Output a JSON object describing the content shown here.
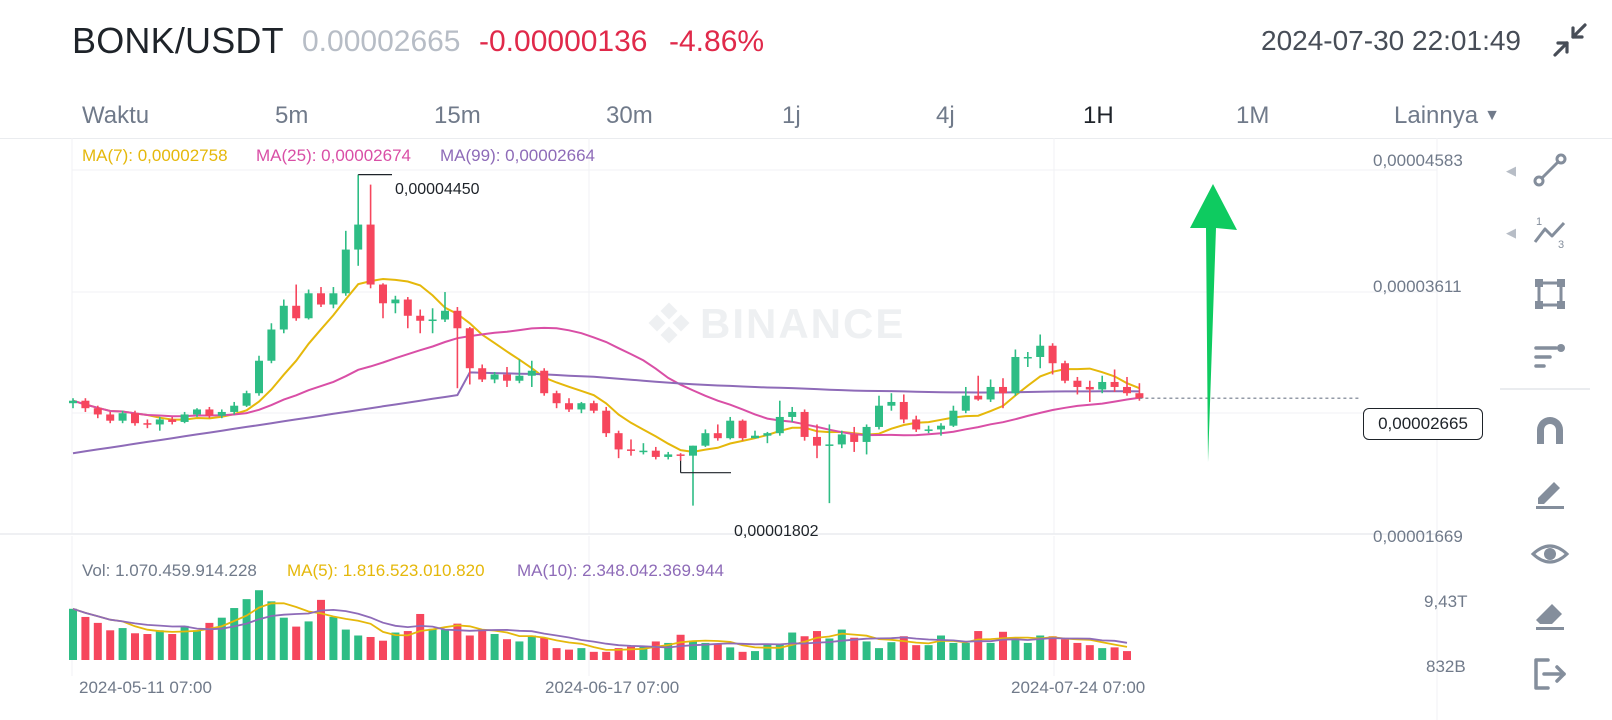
{
  "header": {
    "pair": "BONK/USDT",
    "last_price": "0.00002665",
    "change": "-0.00000136",
    "change_pct": "-4.86%",
    "datetime": "2024-07-30 22:01:49",
    "collapse_icon": "collapse-icon"
  },
  "tabs": {
    "label": "Waktu",
    "items": [
      "5m",
      "15m",
      "30m",
      "1j",
      "4j",
      "1H",
      "1M"
    ],
    "active": "1H",
    "more": "Lainnya"
  },
  "chart": {
    "ma_legend": {
      "ma7": "MA(7): 0,00002758",
      "ma25": "MA(25): 0,00002674",
      "ma99": "MA(99): 0,00002664"
    },
    "vol_legend": {
      "vol": "Vol: 1.070.459.914.228",
      "ma5": "MA(5): 1.816.523.010.820",
      "ma10": "MA(10): 2.348.042.369.944"
    },
    "price_axis": [
      "0,00004583",
      "0,00003611",
      "0,00001669"
    ],
    "current_price_tag": "0,00002665",
    "high_label": "0,00004450",
    "low_label": "0,00001802",
    "volume_axis": [
      "9,43T",
      "832B"
    ],
    "date_axis": [
      "2024-05-11 07:00",
      "2024-06-17 07:00",
      "2024-07-24 07:00"
    ],
    "watermark": "BINANCE",
    "colors": {
      "up": "#2ebd85",
      "down": "#f6465d",
      "ma7": "#e5b80b",
      "ma25": "#d94fa6",
      "ma99": "#8e6bb8",
      "arrow": "#0ecb60"
    }
  },
  "chart_data": {
    "type": "candlestick",
    "interval": "1D",
    "y_range": [
      1.669e-05,
      4.583e-05
    ],
    "candles": [
      [
        2.62e-05,
        2.64e-05,
        2.58e-05,
        2.66e-05
      ],
      [
        2.64e-05,
        2.58e-05,
        2.55e-05,
        2.66e-05
      ],
      [
        2.58e-05,
        2.53e-05,
        2.5e-05,
        2.6e-05
      ],
      [
        2.53e-05,
        2.48e-05,
        2.46e-05,
        2.55e-05
      ],
      [
        2.48e-05,
        2.54e-05,
        2.46e-05,
        2.56e-05
      ],
      [
        2.54e-05,
        2.46e-05,
        2.44e-05,
        2.56e-05
      ],
      [
        2.46e-05,
        2.45e-05,
        2.42e-05,
        2.49e-05
      ],
      [
        2.45e-05,
        2.49e-05,
        2.4e-05,
        2.51e-05
      ],
      [
        2.49e-05,
        2.47e-05,
        2.45e-05,
        2.51e-05
      ],
      [
        2.47e-05,
        2.53e-05,
        2.46e-05,
        2.55e-05
      ],
      [
        2.53e-05,
        2.57e-05,
        2.51e-05,
        2.58e-05
      ],
      [
        2.57e-05,
        2.52e-05,
        2.5e-05,
        2.59e-05
      ],
      [
        2.52e-05,
        2.55e-05,
        2.5e-05,
        2.57e-05
      ],
      [
        2.55e-05,
        2.6e-05,
        2.53e-05,
        2.63e-05
      ],
      [
        2.6e-05,
        2.7e-05,
        2.59e-05,
        2.72e-05
      ],
      [
        2.7e-05,
        2.96e-05,
        2.68e-05,
        3e-05
      ],
      [
        2.96e-05,
        3.21e-05,
        2.94e-05,
        3.26e-05
      ],
      [
        3.21e-05,
        3.4e-05,
        3.18e-05,
        3.45e-05
      ],
      [
        3.4e-05,
        3.3e-05,
        3.28e-05,
        3.57e-05
      ],
      [
        3.3e-05,
        3.5e-05,
        3.29e-05,
        3.53e-05
      ],
      [
        3.5e-05,
        3.41e-05,
        3.39e-05,
        3.55e-05
      ],
      [
        3.41e-05,
        3.5e-05,
        3.38e-05,
        3.55e-05
      ],
      [
        3.5e-05,
        3.85e-05,
        3.48e-05,
        4e-05
      ],
      [
        3.85e-05,
        4.05e-05,
        3.72e-05,
        4.45e-05
      ],
      [
        4.05e-05,
        3.57e-05,
        3.54e-05,
        4.37e-05
      ],
      [
        3.57e-05,
        3.42e-05,
        3.3e-05,
        3.58e-05
      ],
      [
        3.42e-05,
        3.45e-05,
        3.34e-05,
        3.48e-05
      ],
      [
        3.45e-05,
        3.32e-05,
        3.22e-05,
        3.47e-05
      ],
      [
        3.32e-05,
        3.28e-05,
        3.18e-05,
        3.37e-05
      ],
      [
        3.28e-05,
        3.29e-05,
        3.18e-05,
        3.38e-05
      ],
      [
        3.29e-05,
        3.36e-05,
        3.27e-05,
        3.51e-05
      ],
      [
        3.36e-05,
        3.22e-05,
        2.74e-05,
        3.39e-05
      ],
      [
        3.22e-05,
        2.9e-05,
        2.77e-05,
        3.23e-05
      ],
      [
        2.9e-05,
        2.81e-05,
        2.79e-05,
        2.93e-05
      ],
      [
        2.81e-05,
        2.85e-05,
        2.78e-05,
        2.87e-05
      ],
      [
        2.85e-05,
        2.8e-05,
        2.75e-05,
        2.91e-05
      ],
      [
        2.8e-05,
        2.84e-05,
        2.78e-05,
        2.97e-05
      ],
      [
        2.84e-05,
        2.88e-05,
        2.75e-05,
        2.96e-05
      ],
      [
        2.88e-05,
        2.7e-05,
        2.68e-05,
        2.9e-05
      ],
      [
        2.7e-05,
        2.62e-05,
        2.58e-05,
        2.72e-05
      ],
      [
        2.62e-05,
        2.57e-05,
        2.55e-05,
        2.66e-05
      ],
      [
        2.57e-05,
        2.62e-05,
        2.54e-05,
        2.63e-05
      ],
      [
        2.62e-05,
        2.56e-05,
        2.54e-05,
        2.64e-05
      ],
      [
        2.56e-05,
        2.38e-05,
        2.35e-05,
        2.59e-05
      ],
      [
        2.38e-05,
        2.25e-05,
        2.18e-05,
        2.4e-05
      ],
      [
        2.25e-05,
        2.24e-05,
        2.2e-05,
        2.33e-05
      ],
      [
        2.24e-05,
        2.24e-05,
        2.21e-05,
        2.3e-05
      ],
      [
        2.24e-05,
        2.19e-05,
        2.17e-05,
        2.27e-05
      ],
      [
        2.19e-05,
        2.21e-05,
        2.17e-05,
        2.23e-05
      ],
      [
        2.21e-05,
        2.2e-05,
        2.16e-05,
        2.22e-05
      ],
      [
        2.2e-05,
        2.28e-05,
        1.8e-05,
        2.28e-05
      ],
      [
        2.28e-05,
        2.38e-05,
        2.27e-05,
        2.41e-05
      ],
      [
        2.38e-05,
        2.34e-05,
        2.32e-05,
        2.45e-05
      ],
      [
        2.34e-05,
        2.48e-05,
        2.33e-05,
        2.51e-05
      ],
      [
        2.48e-05,
        2.34e-05,
        2.32e-05,
        2.49e-05
      ],
      [
        2.34e-05,
        2.36e-05,
        2.34e-05,
        2.4e-05
      ],
      [
        2.36e-05,
        2.38e-05,
        2.3e-05,
        2.39e-05
      ],
      [
        2.38e-05,
        2.51e-05,
        2.36e-05,
        2.64e-05
      ],
      [
        2.51e-05,
        2.55e-05,
        2.47e-05,
        2.59e-05
      ],
      [
        2.55e-05,
        2.35e-05,
        2.32e-05,
        2.57e-05
      ],
      [
        2.35e-05,
        2.28e-05,
        2.18e-05,
        2.45e-05
      ],
      [
        2.28e-05,
        2.29e-05,
        1.82e-05,
        2.45e-05
      ],
      [
        2.29e-05,
        2.37e-05,
        2.26e-05,
        2.4e-05
      ],
      [
        2.37e-05,
        2.31e-05,
        2.23e-05,
        2.43e-05
      ],
      [
        2.31e-05,
        2.43e-05,
        2.21e-05,
        2.45e-05
      ],
      [
        2.43e-05,
        2.6e-05,
        2.41e-05,
        2.68e-05
      ],
      [
        2.6e-05,
        2.63e-05,
        2.56e-05,
        2.7e-05
      ],
      [
        2.63e-05,
        2.49e-05,
        2.46e-05,
        2.69e-05
      ],
      [
        2.49e-05,
        2.41e-05,
        2.39e-05,
        2.52e-05
      ],
      [
        2.41e-05,
        2.41e-05,
        2.38e-05,
        2.44e-05
      ],
      [
        2.41e-05,
        2.44e-05,
        2.36e-05,
        2.46e-05
      ],
      [
        2.44e-05,
        2.56e-05,
        2.43e-05,
        2.6e-05
      ],
      [
        2.56e-05,
        2.68e-05,
        2.54e-05,
        2.75e-05
      ],
      [
        2.68e-05,
        2.65e-05,
        2.64e-05,
        2.84e-05
      ],
      [
        2.65e-05,
        2.75e-05,
        2.63e-05,
        2.81e-05
      ],
      [
        2.75e-05,
        2.7e-05,
        2.58e-05,
        2.82e-05
      ],
      [
        2.7e-05,
        2.99e-05,
        2.68e-05,
        3.05e-05
      ],
      [
        2.99e-05,
        2.99e-05,
        2.91e-05,
        3.03e-05
      ],
      [
        2.99e-05,
        3.08e-05,
        2.9e-05,
        3.17e-05
      ],
      [
        3.08e-05,
        2.94e-05,
        2.85e-05,
        3.1e-05
      ],
      [
        2.94e-05,
        2.8e-05,
        2.78e-05,
        2.96e-05
      ],
      [
        2.8e-05,
        2.75e-05,
        2.69e-05,
        2.83e-05
      ],
      [
        2.75e-05,
        2.73e-05,
        2.63e-05,
        2.8e-05
      ],
      [
        2.73e-05,
        2.79e-05,
        2.7e-05,
        2.84e-05
      ],
      [
        2.79e-05,
        2.75e-05,
        2.71e-05,
        2.89e-05
      ],
      [
        2.75e-05,
        2.7e-05,
        2.68e-05,
        2.83e-05
      ],
      [
        2.7e-05,
        2.66e-05,
        2.64e-05,
        2.78e-05
      ]
    ],
    "volumes": [
      6.9,
      5.8,
      5.0,
      4.0,
      4.3,
      3.6,
      3.5,
      4.0,
      3.5,
      4.6,
      4.0,
      5.0,
      5.7,
      7.0,
      8.2,
      9.4,
      7.9,
      5.7,
      4.5,
      5.2,
      8.1,
      5.8,
      4.1,
      3.3,
      3.1,
      2.6,
      3.7,
      3.9,
      6.2,
      4.2,
      4.1,
      4.9,
      3.3,
      4.0,
      3.5,
      2.8,
      2.5,
      3.3,
      3.0,
      1.6,
      1.4,
      1.6,
      1.1,
      1.1,
      1.6,
      1.8,
      1.9,
      2.5,
      2.3,
      3.4,
      2.6,
      2.3,
      2.2,
      1.7,
      1.1,
      1.2,
      2.1,
      2.1,
      3.7,
      3.2,
      3.9,
      2.9,
      4.1,
      3.0,
      2.5,
      1.6,
      2.4,
      3.2,
      2.0,
      2.0,
      3.3,
      2.3,
      2.3,
      3.9,
      2.3,
      3.8,
      2.8,
      2.3,
      3.3,
      3.2,
      2.8,
      2.3,
      2.0,
      1.6,
      1.7,
      1.2
    ]
  },
  "toolbar": [
    "trendline-icon",
    "fib-icon",
    "shape-icon",
    "text-icon",
    "magnet-icon",
    "pencil-icon",
    "eye-icon",
    "eraser-icon",
    "exit-icon"
  ]
}
